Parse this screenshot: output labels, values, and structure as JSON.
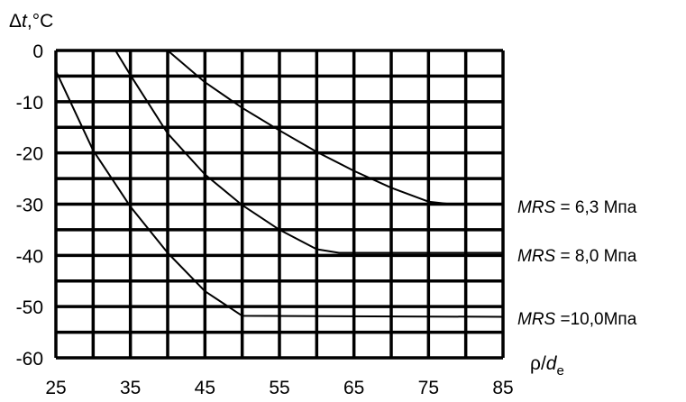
{
  "chart_data": {
    "type": "line",
    "ylabel_symbol": "Δ",
    "ylabel_var": "t",
    "ylabel_unit": ",°C",
    "xlabel_rho": "ρ",
    "xlabel_slash": "/",
    "xlabel_var": "d",
    "xlabel_sub": "e",
    "xlim": [
      25,
      85
    ],
    "ylim": [
      -60,
      0
    ],
    "x_ticks": [
      "25",
      "35",
      "45",
      "55",
      "65",
      "75",
      "85"
    ],
    "y_ticks": [
      "0",
      "-10",
      "-20",
      "-30",
      "-40",
      "-50",
      "-60"
    ],
    "grid": true,
    "series": [
      {
        "mrs": "MRS",
        "eq": " = 6,3 Мпа",
        "x": [
          40,
          45,
          50,
          55,
          60,
          65,
          70,
          75,
          78,
          85
        ],
        "y": [
          0,
          -6.2,
          -11.2,
          -15.6,
          -19.8,
          -23.5,
          -26.8,
          -29.5,
          -30,
          -30
        ]
      },
      {
        "mrs": "MRS",
        "eq": " = 8,0 Мпа",
        "x": [
          33,
          35,
          40,
          45,
          50,
          55,
          60,
          63,
          85
        ],
        "y": [
          0,
          -4.8,
          -16.2,
          -24.2,
          -30.2,
          -35,
          -38.8,
          -39.5,
          -39.5
        ]
      },
      {
        "mrs": "MRS",
        "eq": " =10,0Мпа",
        "x": [
          25,
          30,
          35,
          40,
          45,
          50,
          85
        ],
        "y": [
          -4,
          -19.5,
          -30.5,
          -39.5,
          -47,
          -51.8,
          -52
        ]
      }
    ]
  }
}
